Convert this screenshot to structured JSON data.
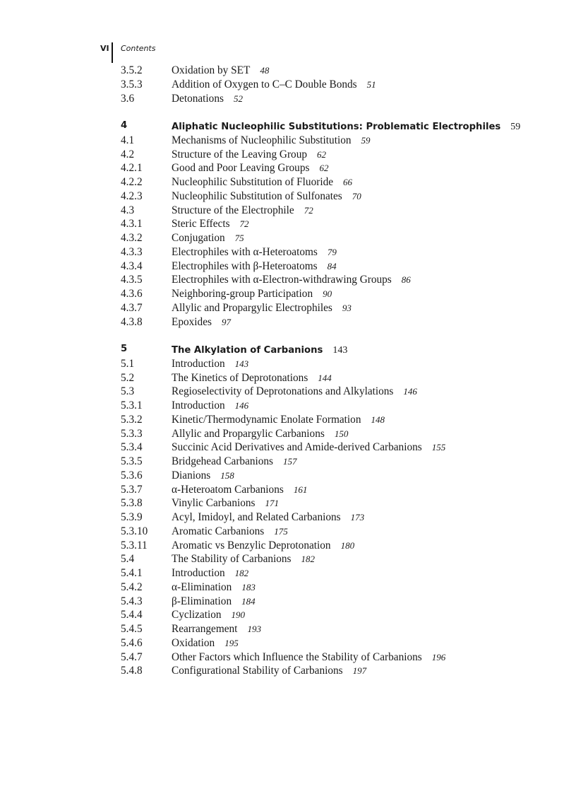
{
  "header": {
    "page_number": "VI",
    "running_title": "Contents"
  },
  "sections": [
    {
      "entries": [
        {
          "num": "3.5.2",
          "title": "Oxidation by SET",
          "page": "48"
        },
        {
          "num": "3.5.3",
          "title": "Addition of Oxygen to C–C Double Bonds",
          "page": "51"
        },
        {
          "num": "3.6",
          "title": "Detonations",
          "page": "52"
        }
      ]
    },
    {
      "entries": [
        {
          "num": "4",
          "title": "Aliphatic Nucleophilic Substitutions: Problematic Electrophiles",
          "page": "59",
          "chapter": true
        },
        {
          "num": "4.1",
          "title": "Mechanisms of Nucleophilic Substitution",
          "page": "59"
        },
        {
          "num": "4.2",
          "title": "Structure of the Leaving Group",
          "page": "62"
        },
        {
          "num": "4.2.1",
          "title": "Good and Poor Leaving Groups",
          "page": "62"
        },
        {
          "num": "4.2.2",
          "title": "Nucleophilic Substitution of Fluoride",
          "page": "66"
        },
        {
          "num": "4.2.3",
          "title": "Nucleophilic Substitution of Sulfonates",
          "page": "70"
        },
        {
          "num": "4.3",
          "title": "Structure of the Electrophile",
          "page": "72"
        },
        {
          "num": "4.3.1",
          "title": "Steric Effects",
          "page": "72"
        },
        {
          "num": "4.3.2",
          "title": "Conjugation",
          "page": "75"
        },
        {
          "num": "4.3.3",
          "title": "Electrophiles with α-Heteroatoms",
          "page": "79"
        },
        {
          "num": "4.3.4",
          "title": "Electrophiles with β-Heteroatoms",
          "page": "84"
        },
        {
          "num": "4.3.5",
          "title": "Electrophiles with α-Electron-withdrawing Groups",
          "page": "86"
        },
        {
          "num": "4.3.6",
          "title": "Neighboring-group Participation",
          "page": "90"
        },
        {
          "num": "4.3.7",
          "title": "Allylic and Propargylic Electrophiles",
          "page": "93"
        },
        {
          "num": "4.3.8",
          "title": "Epoxides",
          "page": "97"
        }
      ]
    },
    {
      "entries": [
        {
          "num": "5",
          "title": "The Alkylation of Carbanions",
          "page": "143",
          "chapter": true
        },
        {
          "num": "5.1",
          "title": "Introduction",
          "page": "143"
        },
        {
          "num": "5.2",
          "title": "The Kinetics of Deprotonations",
          "page": "144"
        },
        {
          "num": "5.3",
          "title": "Regioselectivity of Deprotonations and Alkylations",
          "page": "146"
        },
        {
          "num": "5.3.1",
          "title": "Introduction",
          "page": "146"
        },
        {
          "num": "5.3.2",
          "title": "Kinetic/Thermodynamic Enolate Formation",
          "page": "148"
        },
        {
          "num": "5.3.3",
          "title": "Allylic and Propargylic Carbanions",
          "page": "150"
        },
        {
          "num": "5.3.4",
          "title": "Succinic Acid Derivatives and Amide-derived Carbanions",
          "page": "155"
        },
        {
          "num": "5.3.5",
          "title": "Bridgehead Carbanions",
          "page": "157"
        },
        {
          "num": "5.3.6",
          "title": "Dianions",
          "page": "158"
        },
        {
          "num": "5.3.7",
          "title": "α-Heteroatom Carbanions",
          "page": "161"
        },
        {
          "num": "5.3.8",
          "title": "Vinylic Carbanions",
          "page": "171"
        },
        {
          "num": "5.3.9",
          "title": "Acyl, Imidoyl, and Related Carbanions",
          "page": "173"
        },
        {
          "num": "5.3.10",
          "title": "Aromatic Carbanions",
          "page": "175"
        },
        {
          "num": "5.3.11",
          "title": "Aromatic vs Benzylic Deprotonation",
          "page": "180"
        },
        {
          "num": "5.4",
          "title": "The Stability of Carbanions",
          "page": "182"
        },
        {
          "num": "5.4.1",
          "title": "Introduction",
          "page": "182"
        },
        {
          "num": "5.4.2",
          "title": "α-Elimination",
          "page": "183"
        },
        {
          "num": "5.4.3",
          "title": "β-Elimination",
          "page": "184"
        },
        {
          "num": "5.4.4",
          "title": "Cyclization",
          "page": "190"
        },
        {
          "num": "5.4.5",
          "title": "Rearrangement",
          "page": "193"
        },
        {
          "num": "5.4.6",
          "title": "Oxidation",
          "page": "195"
        },
        {
          "num": "5.4.7",
          "title": "Other Factors which Influence the Stability of Carbanions",
          "page": "196"
        },
        {
          "num": "5.4.8",
          "title": "Configurational Stability of Carbanions",
          "page": "197"
        }
      ]
    }
  ]
}
